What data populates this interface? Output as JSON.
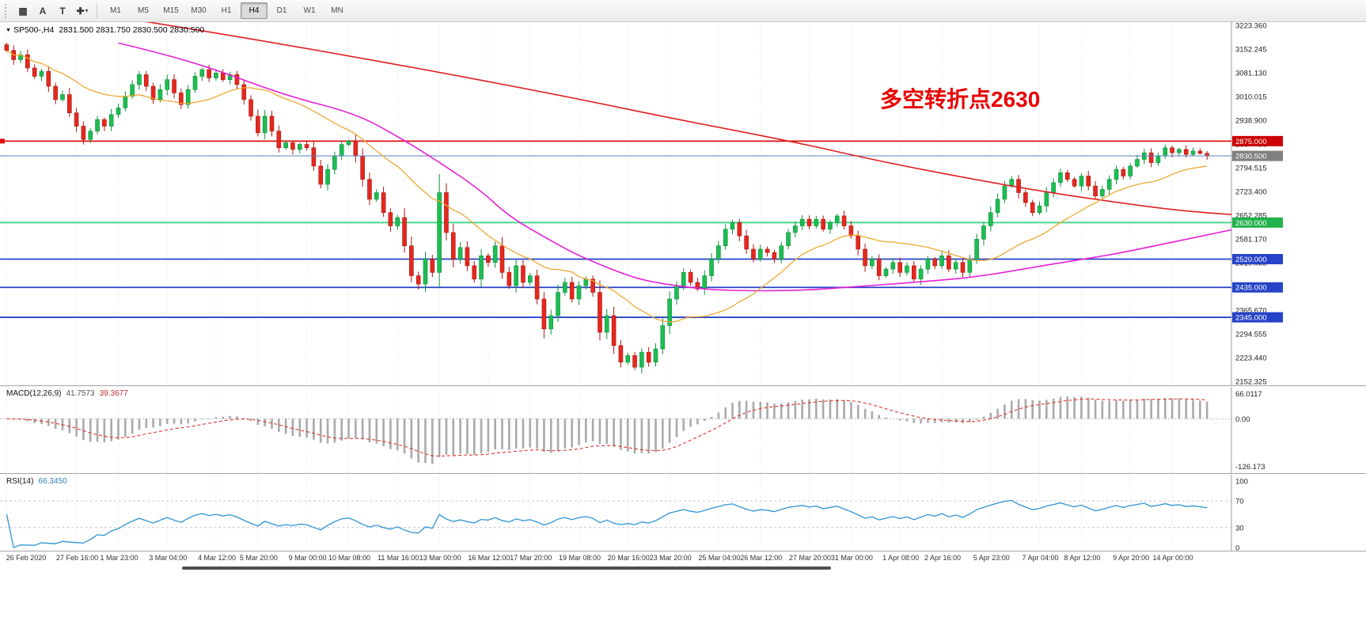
{
  "toolbar": {
    "icons": [
      {
        "name": "chart-grid",
        "glyph": "▦"
      },
      {
        "name": "cursor-tool",
        "glyph": "A"
      },
      {
        "name": "text-tool",
        "glyph": "T"
      },
      {
        "name": "draw-tool",
        "glyph": "✚"
      },
      {
        "name": "dropdown-caret",
        "glyph": "▾"
      }
    ],
    "timeframes": [
      "M1",
      "M5",
      "M15",
      "M30",
      "H1",
      "H4",
      "D1",
      "W1",
      "MN"
    ],
    "active_timeframe": "H4"
  },
  "colors": {
    "up": "#1dbd52",
    "up_stroke": "#0e8f3a",
    "down": "#e5281e",
    "down_stroke": "#a81710",
    "grid": "#e7e7e7",
    "axis_border": "#9a9a9a",
    "macd_hist": "#a9a9a9",
    "macd_signal": "#e03030"
  },
  "chart": {
    "collapse_glyph": "▼",
    "symbol_period": "SP500-,H4",
    "quote_line": "2831.500 2831.750 2830.500 2830.500",
    "annotation": {
      "text": "多空转折点2630",
      "color": "#e80000"
    },
    "price_axis": {
      "max": 3223.36,
      "min": 2152.325,
      "ticks": [
        "3223.360",
        "3152.245",
        "3081.130",
        "3010.015",
        "2938.900",
        "2867.785",
        "2794.515",
        "2723.400",
        "2652.285",
        "2581.170",
        "2510.055",
        "2438.940",
        "2365.670",
        "2294.555",
        "2223.440",
        "2152.325"
      ]
    },
    "hlines": [
      {
        "price": 2875.0,
        "label": "2875.000",
        "color": "#dd1111",
        "label_bg": "#cc0000",
        "width": 1.8,
        "handle": true
      },
      {
        "price": 2630.0,
        "label": "2630.000",
        "color": "#3fd685",
        "label_bg": "#22b14c",
        "width": 1.8
      },
      {
        "price": 2520.0,
        "label": "2520.000",
        "color": "#2743c8",
        "label_bg": "#2743c8",
        "width": 1.8
      },
      {
        "price": 2435.0,
        "label": "2435.000",
        "color": "#2743c8",
        "label_bg": "#2743c8",
        "width": 1.8
      },
      {
        "price": 2345.0,
        "label": "2345.000",
        "color": "#2743c8",
        "label_bg": "#2743c8",
        "width": 1.8
      }
    ],
    "current_price": {
      "value": 2830.5,
      "label": "2830.500",
      "line_color": "#5b80bd",
      "label_bg": "#808080"
    },
    "series": {
      "first_open": 3165,
      "closes": [
        3148,
        3120,
        3135,
        3095,
        3070,
        3085,
        3040,
        3000,
        3015,
        2960,
        2920,
        2880,
        2905,
        2940,
        2920,
        2955,
        2975,
        3010,
        3045,
        3075,
        3040,
        3000,
        3030,
        3060,
        3020,
        2985,
        3030,
        3070,
        3090,
        3065,
        3080,
        3060,
        3075,
        3045,
        3000,
        2950,
        2900,
        2950,
        2905,
        2855,
        2870,
        2850,
        2865,
        2855,
        2800,
        2745,
        2790,
        2830,
        2865,
        2875,
        2830,
        2760,
        2700,
        2720,
        2660,
        2620,
        2645,
        2560,
        2470,
        2445,
        2520,
        2480,
        2720,
        2600,
        2520,
        2555,
        2500,
        2460,
        2530,
        2510,
        2560,
        2480,
        2440,
        2500,
        2450,
        2470,
        2400,
        2310,
        2350,
        2420,
        2450,
        2400,
        2440,
        2460,
        2420,
        2300,
        2350,
        2260,
        2210,
        2230,
        2195,
        2240,
        2210,
        2250,
        2320,
        2400,
        2440,
        2480,
        2450,
        2430,
        2470,
        2520,
        2560,
        2610,
        2630,
        2590,
        2550,
        2520,
        2550,
        2540,
        2520,
        2560,
        2600,
        2620,
        2640,
        2620,
        2640,
        2610,
        2630,
        2650,
        2620,
        2590,
        2550,
        2500,
        2520,
        2470,
        2490,
        2510,
        2480,
        2500,
        2460,
        2490,
        2520,
        2500,
        2530,
        2490,
        2510,
        2480,
        2520,
        2580,
        2620,
        2660,
        2700,
        2740,
        2760,
        2720,
        2690,
        2660,
        2680,
        2720,
        2750,
        2780,
        2760,
        2740,
        2770,
        2740,
        2710,
        2730,
        2760,
        2790,
        2770,
        2800,
        2820,
        2840,
        2810,
        2830,
        2855,
        2840,
        2850,
        2835,
        2845,
        2838,
        2830.5
      ]
    },
    "ma_lines": {
      "red": {
        "color": "#e02020",
        "anchors": [
          [
            0,
            3300
          ],
          [
            20,
            3235
          ],
          [
            40,
            3165
          ],
          [
            60,
            3090
          ],
          [
            80,
            3010
          ],
          [
            95,
            2945
          ],
          [
            113,
            2872
          ],
          [
            125,
            2815
          ],
          [
            138,
            2762
          ],
          [
            150,
            2718
          ],
          [
            160,
            2688
          ],
          [
            168,
            2666
          ],
          [
            176,
            2654
          ]
        ]
      },
      "magenta": {
        "color": "#e620d6",
        "anchors": [
          [
            16,
            3170
          ],
          [
            22,
            3140
          ],
          [
            30,
            3090
          ],
          [
            40,
            3012
          ],
          [
            50,
            2958
          ],
          [
            56,
            2890
          ],
          [
            62,
            2812
          ],
          [
            68,
            2726
          ],
          [
            72,
            2648
          ],
          [
            78,
            2575
          ],
          [
            82,
            2530
          ],
          [
            88,
            2478
          ],
          [
            92,
            2452
          ],
          [
            100,
            2428
          ],
          [
            108,
            2424
          ],
          [
            115,
            2427
          ],
          [
            122,
            2438
          ],
          [
            130,
            2450
          ],
          [
            139,
            2466
          ],
          [
            150,
            2506
          ],
          [
            158,
            2532
          ],
          [
            165,
            2562
          ],
          [
            176,
            2608
          ]
        ]
      },
      "orange": {
        "color": "#efa832",
        "period": 20
      }
    },
    "time_axis": {
      "labels": [
        "26 Feb 2020",
        "27 Feb 16:00",
        "1 Mar 23:00",
        "3 Mar 04:00",
        "4 Mar 12:00",
        "5 Mar 20:00",
        "9 Mar 00:00",
        "10 Mar 08:00",
        "11 Mar 16:00",
        "13 Mar 00:00",
        "16 Mar 12:00",
        "17 Mar 20:00",
        "19 Mar 08:00",
        "20 Mar 16:00",
        "23 Mar 20:00",
        "25 Mar 04:00",
        "26 Mar 12:00",
        "27 Mar 20:00",
        "31 Mar 00:00",
        "1 Apr 08:00",
        "2 Apr 16:00",
        "5 Apr 23:00",
        "7 Apr 04:00",
        "8 Apr 12:00",
        "9 Apr 20:00",
        "14 Apr 00:00"
      ],
      "bar_index": [
        0,
        10,
        16,
        23,
        30,
        36,
        43,
        49,
        56,
        62,
        69,
        75,
        82,
        89,
        95,
        102,
        108,
        115,
        121,
        128,
        134,
        141,
        148,
        154,
        161,
        167
      ]
    }
  },
  "macd": {
    "label": "MACD(12,26,9)",
    "value_main": "41.7573",
    "value_signal": "39.3677",
    "scale_top": "66.0117",
    "scale_zero": "0.00",
    "scale_bottom": "-126.173",
    "range": [
      -126.173,
      66.0117
    ]
  },
  "rsi": {
    "label": "RSI(14)",
    "value": "66.3450",
    "line_color": "#2d93d6",
    "scale_labels": [
      "100",
      "70",
      "30",
      "0"
    ],
    "scale_values": [
      100,
      70,
      30,
      0
    ],
    "levels": [
      70,
      30
    ]
  }
}
